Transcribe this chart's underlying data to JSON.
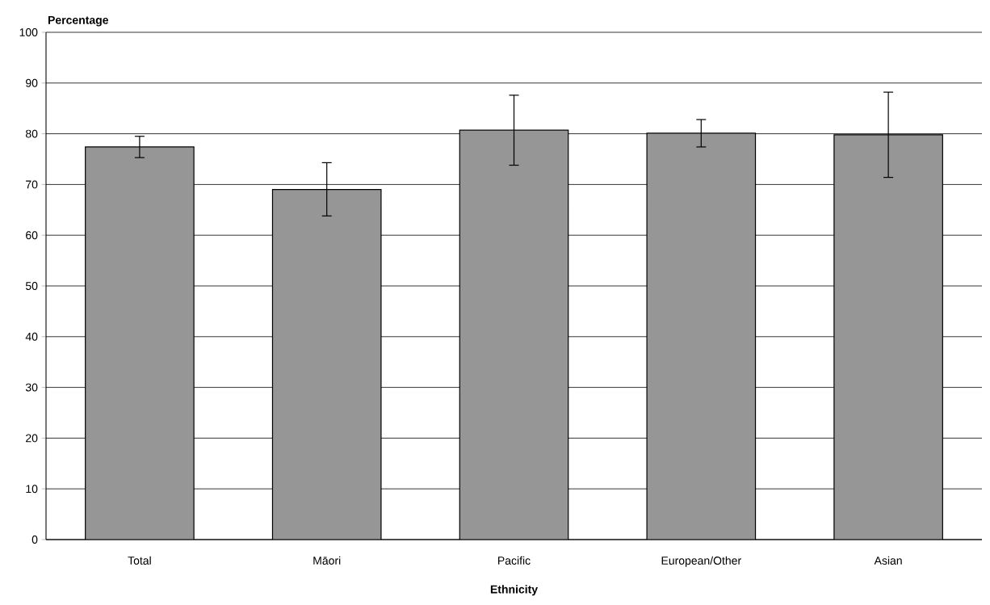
{
  "chart_data": {
    "type": "bar",
    "xlabel": "Ethnicity",
    "ylabel": "Percentage",
    "categories": [
      "Total",
      "Māori",
      "Pacific",
      "European/Other",
      "Asian"
    ],
    "values": [
      77.4,
      69.0,
      80.7,
      80.1,
      79.8
    ],
    "errors": [
      [
        75.3,
        79.5
      ],
      [
        63.8,
        74.3
      ],
      [
        73.8,
        87.6
      ],
      [
        77.4,
        82.8
      ],
      [
        71.4,
        88.2
      ]
    ],
    "color": "#969696",
    "ylim": [
      0,
      100
    ],
    "yticks": [
      0,
      10,
      20,
      30,
      40,
      50,
      60,
      70,
      80,
      90,
      100
    ],
    "grid": "y"
  }
}
